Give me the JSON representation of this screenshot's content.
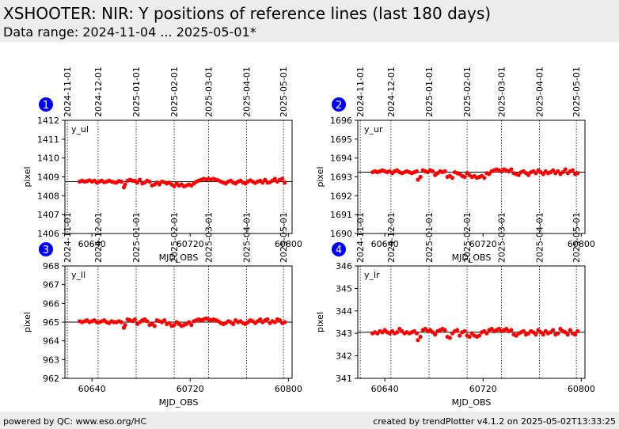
{
  "page": {
    "title": "XSHOOTER: NIR: Y positions of reference lines (last 180 days)",
    "subtitle": "Data range: 2024-11-04 ... 2025-05-01*"
  },
  "footer": {
    "left": "powered by QC: www.eso.org/HC",
    "right": "created by trendPlotter v4.1.2 on 2025-05-02T13:33:25"
  },
  "colors": {
    "points": "#ff0000",
    "badge": "#0000ff",
    "reference_line": "#000000",
    "header_background": "#ececec"
  },
  "chart_data": [
    {
      "type": "scatter",
      "badge": "1",
      "panel_label": "y_ul",
      "xlabel": "MJD_OBS",
      "ylabel": "pixel",
      "xlim": [
        60618,
        60803
      ],
      "ylim": [
        1406,
        1412
      ],
      "xticks": [
        60640,
        60720,
        60800
      ],
      "yticks": [
        1406,
        1407,
        1408,
        1409,
        1410,
        1411,
        1412
      ],
      "reference_value": 1408.75,
      "date_lines": [
        {
          "x": 60620,
          "label": "2024-11-01"
        },
        {
          "x": 60645,
          "label": "2024-12-01"
        },
        {
          "x": 60676,
          "label": "2025-01-01"
        },
        {
          "x": 60707,
          "label": "2025-02-01"
        },
        {
          "x": 60735,
          "label": "2025-03-01"
        },
        {
          "x": 60766,
          "label": "2025-04-01"
        },
        {
          "x": 60796,
          "label": "2025-05-01"
        }
      ],
      "x": [
        60630,
        60632,
        60634,
        60636,
        60638,
        60640,
        60642,
        60644,
        60646,
        60648,
        60650,
        60652,
        60654,
        60656,
        60658,
        60660,
        60662,
        60664,
        60666,
        60667,
        60669,
        60671,
        60673,
        60675,
        60677,
        60679,
        60681,
        60683,
        60685,
        60687,
        60689,
        60691,
        60693,
        60695,
        60697,
        60699,
        60701,
        60703,
        60705,
        60707,
        60709,
        60711,
        60713,
        60715,
        60717,
        60719,
        60721,
        60723,
        60725,
        60727,
        60729,
        60731,
        60733,
        60735,
        60737,
        60739,
        60741,
        60743,
        60745,
        60747,
        60749,
        60751,
        60753,
        60755,
        60757,
        60759,
        60761,
        60763,
        60765,
        60767,
        60769,
        60771,
        60773,
        60775,
        60777,
        60779,
        60781,
        60783,
        60785,
        60787,
        60789,
        60791,
        60793,
        60795,
        60797
      ],
      "y": [
        1408.75,
        1408.8,
        1408.75,
        1408.78,
        1408.82,
        1408.75,
        1408.8,
        1408.7,
        1408.75,
        1408.8,
        1408.72,
        1408.75,
        1408.8,
        1408.75,
        1408.72,
        1408.7,
        1408.78,
        1408.75,
        1408.45,
        1408.6,
        1408.8,
        1408.85,
        1408.8,
        1408.78,
        1408.7,
        1408.85,
        1408.65,
        1408.7,
        1408.8,
        1408.75,
        1408.55,
        1408.6,
        1408.7,
        1408.6,
        1408.75,
        1408.72,
        1408.65,
        1408.7,
        1408.6,
        1408.5,
        1408.65,
        1408.55,
        1408.6,
        1408.5,
        1408.55,
        1408.6,
        1408.55,
        1408.65,
        1408.75,
        1408.8,
        1408.85,
        1408.9,
        1408.85,
        1408.9,
        1408.85,
        1408.9,
        1408.85,
        1408.82,
        1408.75,
        1408.7,
        1408.65,
        1408.75,
        1408.8,
        1408.7,
        1408.65,
        1408.75,
        1408.8,
        1408.7,
        1408.65,
        1408.75,
        1408.82,
        1408.75,
        1408.68,
        1408.75,
        1408.8,
        1408.7,
        1408.85,
        1408.7,
        1408.72,
        1408.8,
        1408.9,
        1408.75,
        1408.85,
        1408.9,
        1408.7
      ]
    },
    {
      "type": "scatter",
      "badge": "2",
      "panel_label": "y_ur",
      "xlabel": "MJD_OBS",
      "ylabel": "pixel",
      "xlim": [
        60618,
        60803
      ],
      "ylim": [
        1690,
        1696
      ],
      "xticks": [
        60640,
        60720,
        60800
      ],
      "yticks": [
        1690,
        1691,
        1692,
        1693,
        1694,
        1695,
        1696
      ],
      "reference_value": 1693.25,
      "date_lines": [
        {
          "x": 60620,
          "label": "2024-11-01"
        },
        {
          "x": 60645,
          "label": "2024-12-01"
        },
        {
          "x": 60676,
          "label": "2025-01-01"
        },
        {
          "x": 60707,
          "label": "2025-02-01"
        },
        {
          "x": 60735,
          "label": "2025-03-01"
        },
        {
          "x": 60766,
          "label": "2025-04-01"
        },
        {
          "x": 60796,
          "label": "2025-05-01"
        }
      ],
      "x": [
        60630,
        60632,
        60634,
        60636,
        60638,
        60640,
        60642,
        60644,
        60646,
        60648,
        60650,
        60652,
        60654,
        60656,
        60658,
        60660,
        60662,
        60664,
        60666,
        60667,
        60669,
        60671,
        60673,
        60675,
        60677,
        60679,
        60681,
        60683,
        60685,
        60687,
        60689,
        60691,
        60693,
        60695,
        60697,
        60699,
        60701,
        60703,
        60705,
        60707,
        60709,
        60711,
        60713,
        60715,
        60717,
        60719,
        60721,
        60723,
        60725,
        60727,
        60729,
        60731,
        60733,
        60735,
        60737,
        60739,
        60741,
        60743,
        60745,
        60747,
        60749,
        60751,
        60753,
        60755,
        60757,
        60759,
        60761,
        60763,
        60765,
        60767,
        60769,
        60771,
        60773,
        60775,
        60777,
        60779,
        60781,
        60783,
        60785,
        60787,
        60789,
        60791,
        60793,
        60795,
        60797
      ],
      "y": [
        1693.25,
        1693.3,
        1693.25,
        1693.3,
        1693.35,
        1693.3,
        1693.25,
        1693.3,
        1693.2,
        1693.3,
        1693.35,
        1693.25,
        1693.2,
        1693.25,
        1693.3,
        1693.25,
        1693.2,
        1693.25,
        1693.3,
        1692.85,
        1693.0,
        1693.35,
        1693.3,
        1693.25,
        1693.35,
        1693.3,
        1693.1,
        1693.2,
        1693.3,
        1693.25,
        1693.3,
        1693.0,
        1693.05,
        1692.95,
        1693.25,
        1693.2,
        1693.15,
        1693.05,
        1693.0,
        1693.2,
        1693.1,
        1693.0,
        1693.05,
        1692.95,
        1693.0,
        1693.05,
        1692.95,
        1693.2,
        1693.15,
        1693.3,
        1693.35,
        1693.4,
        1693.35,
        1693.3,
        1693.4,
        1693.35,
        1693.3,
        1693.4,
        1693.2,
        1693.15,
        1693.1,
        1693.25,
        1693.3,
        1693.2,
        1693.1,
        1693.25,
        1693.3,
        1693.2,
        1693.35,
        1693.25,
        1693.15,
        1693.3,
        1693.2,
        1693.25,
        1693.35,
        1693.2,
        1693.3,
        1693.15,
        1693.25,
        1693.4,
        1693.2,
        1693.3,
        1693.35,
        1693.15,
        1693.2
      ]
    },
    {
      "type": "scatter",
      "badge": "3",
      "panel_label": "y_ll",
      "xlabel": "MJD_OBS",
      "ylabel": "pixel",
      "xlim": [
        60618,
        60803
      ],
      "ylim": [
        962,
        968
      ],
      "xticks": [
        60640,
        60720,
        60800
      ],
      "yticks": [
        962,
        963,
        964,
        965,
        966,
        967,
        968
      ],
      "reference_value": 965.0,
      "date_lines": [
        {
          "x": 60620,
          "label": "2024-11-01"
        },
        {
          "x": 60645,
          "label": "2024-12-01"
        },
        {
          "x": 60676,
          "label": "2025-01-01"
        },
        {
          "x": 60707,
          "label": "2025-02-01"
        },
        {
          "x": 60735,
          "label": "2025-03-01"
        },
        {
          "x": 60766,
          "label": "2025-04-01"
        },
        {
          "x": 60796,
          "label": "2025-05-01"
        }
      ],
      "x": [
        60630,
        60632,
        60634,
        60636,
        60638,
        60640,
        60642,
        60644,
        60646,
        60648,
        60650,
        60652,
        60654,
        60656,
        60658,
        60660,
        60662,
        60664,
        60666,
        60667,
        60669,
        60671,
        60673,
        60675,
        60677,
        60679,
        60681,
        60683,
        60685,
        60687,
        60689,
        60691,
        60693,
        60695,
        60697,
        60699,
        60701,
        60703,
        60705,
        60707,
        60709,
        60711,
        60713,
        60715,
        60717,
        60719,
        60721,
        60723,
        60725,
        60727,
        60729,
        60731,
        60733,
        60735,
        60737,
        60739,
        60741,
        60743,
        60745,
        60747,
        60749,
        60751,
        60753,
        60755,
        60757,
        60759,
        60761,
        60763,
        60765,
        60767,
        60769,
        60771,
        60773,
        60775,
        60777,
        60779,
        60781,
        60783,
        60785,
        60787,
        60789,
        60791,
        60793,
        60795,
        60797
      ],
      "y": [
        965.05,
        965.0,
        965.05,
        965.1,
        965.0,
        965.05,
        965.1,
        965.0,
        965.0,
        965.05,
        965.1,
        965.0,
        964.95,
        965.05,
        965.0,
        965.0,
        965.05,
        965.0,
        964.7,
        964.85,
        965.15,
        965.1,
        965.05,
        965.15,
        964.9,
        965.0,
        965.1,
        965.15,
        965.05,
        964.85,
        964.9,
        964.8,
        965.1,
        965.05,
        965.0,
        965.1,
        964.9,
        964.95,
        964.8,
        964.85,
        965.0,
        964.9,
        964.8,
        964.85,
        964.9,
        965.0,
        964.85,
        965.05,
        965.1,
        965.15,
        965.1,
        965.15,
        965.2,
        965.15,
        965.1,
        965.15,
        965.1,
        965.05,
        964.95,
        964.9,
        964.95,
        965.05,
        965.0,
        964.9,
        965.1,
        965.0,
        965.05,
        964.95,
        964.9,
        965.0,
        965.1,
        965.05,
        964.95,
        965.05,
        965.15,
        965.0,
        965.1,
        965.15,
        964.95,
        965.05,
        965.0,
        965.15,
        965.1,
        964.95,
        965.0
      ]
    },
    {
      "type": "scatter",
      "badge": "4",
      "panel_label": "y_lr",
      "xlabel": "MJD_OBS",
      "ylabel": "pixel",
      "xlim": [
        60618,
        60803
      ],
      "ylim": [
        341,
        346
      ],
      "xticks": [
        60640,
        60720,
        60800
      ],
      "yticks": [
        341,
        342,
        343,
        344,
        345,
        346
      ],
      "reference_value": 343.05,
      "date_lines": [
        {
          "x": 60620,
          "label": "2024-11-01"
        },
        {
          "x": 60645,
          "label": "2024-12-01"
        },
        {
          "x": 60676,
          "label": "2025-01-01"
        },
        {
          "x": 60707,
          "label": "2025-02-01"
        },
        {
          "x": 60735,
          "label": "2025-03-01"
        },
        {
          "x": 60766,
          "label": "2025-04-01"
        },
        {
          "x": 60796,
          "label": "2025-05-01"
        }
      ],
      "x": [
        60630,
        60632,
        60634,
        60636,
        60638,
        60640,
        60642,
        60644,
        60646,
        60648,
        60650,
        60652,
        60654,
        60656,
        60658,
        60660,
        60662,
        60664,
        60666,
        60667,
        60669,
        60671,
        60673,
        60675,
        60677,
        60679,
        60681,
        60683,
        60685,
        60687,
        60689,
        60691,
        60693,
        60695,
        60697,
        60699,
        60701,
        60703,
        60705,
        60707,
        60709,
        60711,
        60713,
        60715,
        60717,
        60719,
        60721,
        60723,
        60725,
        60727,
        60729,
        60731,
        60733,
        60735,
        60737,
        60739,
        60741,
        60743,
        60745,
        60747,
        60749,
        60751,
        60753,
        60755,
        60757,
        60759,
        60761,
        60763,
        60765,
        60767,
        60769,
        60771,
        60773,
        60775,
        60777,
        60779,
        60781,
        60783,
        60785,
        60787,
        60789,
        60791,
        60793,
        60795,
        60797
      ],
      "y": [
        343.0,
        343.05,
        343.0,
        343.1,
        343.05,
        343.15,
        343.05,
        343.0,
        343.1,
        343.0,
        343.05,
        343.2,
        343.1,
        343.0,
        343.05,
        343.0,
        343.05,
        343.1,
        343.0,
        342.7,
        342.85,
        343.15,
        343.2,
        343.1,
        343.15,
        343.05,
        342.95,
        343.1,
        343.15,
        343.2,
        343.15,
        342.85,
        342.8,
        343.0,
        343.1,
        343.15,
        342.9,
        343.05,
        343.1,
        342.9,
        342.85,
        343.0,
        342.9,
        342.85,
        342.9,
        343.05,
        343.1,
        343.0,
        343.15,
        343.2,
        343.1,
        343.15,
        343.2,
        343.1,
        343.15,
        343.2,
        343.1,
        343.15,
        342.95,
        342.9,
        343.0,
        343.05,
        343.1,
        342.95,
        343.0,
        343.1,
        343.05,
        342.95,
        343.15,
        343.05,
        342.95,
        343.1,
        343.0,
        343.05,
        343.15,
        342.95,
        343.0,
        343.2,
        343.1,
        343.05,
        342.95,
        343.15,
        343.0,
        342.95,
        343.1
      ]
    }
  ]
}
